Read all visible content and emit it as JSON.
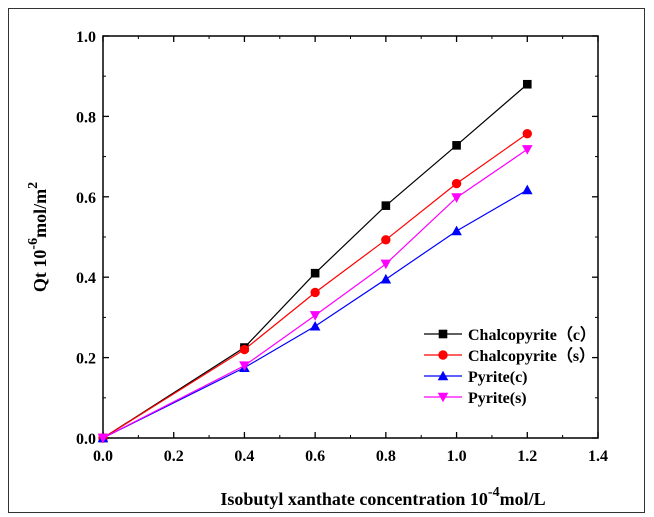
{
  "chart_data": {
    "type": "line",
    "xlabel": "Isobutyl xanthate  concentration 10",
    "xlabel_sup": "-4",
    "xlabel_unit": "mol/L",
    "ylabel": "Qt 10",
    "ylabel_sup": "-6",
    "ylabel_unit": "mol/m",
    "ylabel_unit_sup": "2",
    "xlim": [
      0.0,
      1.4
    ],
    "ylim": [
      0.0,
      1.0
    ],
    "xticks": [
      "0.0",
      "0.2",
      "0.4",
      "0.6",
      "0.8",
      "1.0",
      "1.2",
      "1.4"
    ],
    "yticks": [
      "0.0",
      "0.2",
      "0.4",
      "0.6",
      "0.8",
      "1.0"
    ],
    "legend_position": "bottom-right",
    "grid": false,
    "x": [
      0.0,
      0.4,
      0.6,
      0.8,
      1.0,
      1.2
    ],
    "series": [
      {
        "name": "Chalcopyrite（c）",
        "color": "#000000",
        "marker": "square",
        "values": [
          0.0,
          0.225,
          0.41,
          0.578,
          0.728,
          0.88
        ]
      },
      {
        "name": "Chalcopyrite（s）",
        "color": "#ff0000",
        "marker": "circle",
        "values": [
          0.0,
          0.22,
          0.362,
          0.493,
          0.633,
          0.757
        ]
      },
      {
        "name": "Pyrite(c)",
        "color": "#0000ff",
        "marker": "triangle-up",
        "values": [
          0.0,
          0.175,
          0.278,
          0.395,
          0.515,
          0.617
        ]
      },
      {
        "name": "Pyrite(s)",
        "color": "#ff00ff",
        "marker": "triangle-down",
        "values": [
          0.0,
          0.18,
          0.305,
          0.433,
          0.598,
          0.718
        ]
      }
    ]
  }
}
